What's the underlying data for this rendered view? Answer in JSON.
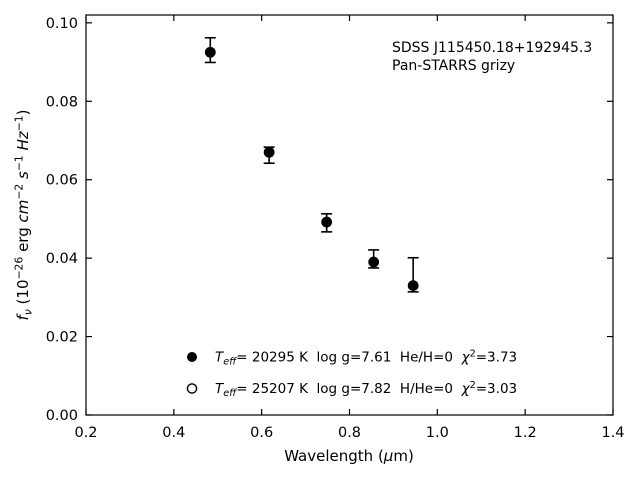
{
  "colors": {
    "foreground": "#000000",
    "background": "#ffffff"
  },
  "chart_data": {
    "type": "scatter",
    "title": "",
    "xlabel": "Wavelength (μm)",
    "ylabel": "f_ν (10^−26 erg cm^−2 s^−1 Hz^−1)",
    "xlabel_segments": [
      {
        "t": "Wavelength ("
      },
      {
        "t": "μ",
        "i": 1
      },
      {
        "t": "m)"
      }
    ],
    "ylabel_segments": [
      {
        "t": "f",
        "i": 1
      },
      {
        "t": "ν",
        "i": 1,
        "sub": 1
      },
      {
        "t": " (10"
      },
      {
        "t": "−26",
        "sup": 1
      },
      {
        "t": " erg "
      },
      {
        "t": "cm",
        "i": 1
      },
      {
        "t": "−2",
        "sup": 1
      },
      {
        "t": " "
      },
      {
        "t": "s",
        "i": 1
      },
      {
        "t": "−1",
        "sup": 1
      },
      {
        "t": " "
      },
      {
        "t": "Hz",
        "i": 1
      },
      {
        "t": "−1",
        "sup": 1
      },
      {
        "t": ")"
      }
    ],
    "xlim": [
      0.2,
      1.4
    ],
    "ylim": [
      0.0,
      0.102
    ],
    "xticks": [
      0.2,
      0.4,
      0.6,
      0.8,
      1.0,
      1.2,
      1.4
    ],
    "xtick_labels": [
      "0.2",
      "0.4",
      "0.6",
      "0.8",
      "1.0",
      "1.2",
      "1.4"
    ],
    "yticks": [
      0.0,
      0.02,
      0.04,
      0.06,
      0.08,
      0.1
    ],
    "ytick_labels": [
      "0.00",
      "0.02",
      "0.04",
      "0.06",
      "0.08",
      "0.10"
    ],
    "grid": false,
    "annotations": [
      "SDSS J115450.18+192945.3",
      "Pan-STARRS grizy"
    ],
    "series": [
      {
        "name": "model-fluxes-filled",
        "marker": "filled-circle",
        "color": "#000000",
        "x": [
          0.483,
          0.617,
          0.748,
          0.855,
          0.945
        ],
        "y": [
          0.0925,
          0.067,
          0.0492,
          0.039,
          0.033
        ]
      }
    ],
    "errorbars": {
      "x": [
        0.483,
        0.617,
        0.748,
        0.855,
        0.945
      ],
      "y_low": [
        0.0899,
        0.0642,
        0.0467,
        0.0375,
        0.0314
      ],
      "y_high": [
        0.0962,
        0.0683,
        0.0513,
        0.0421,
        0.0401
      ]
    },
    "legend": {
      "position": "lower-center-inside",
      "rows": [
        {
          "marker": "filled-circle",
          "segments": [
            {
              "t": "T",
              "i": 1
            },
            {
              "t": "eff",
              "i": 1,
              "sub": 1
            },
            {
              "t": "= 20295 K  log g=7.61  He/H=0  "
            },
            {
              "t": "χ",
              "i": 1
            },
            {
              "t": "2",
              "sup": 1
            },
            {
              "t": "=3.73"
            }
          ]
        },
        {
          "marker": "open-circle",
          "segments": [
            {
              "t": "T",
              "i": 1
            },
            {
              "t": "eff",
              "i": 1,
              "sub": 1
            },
            {
              "t": "= 25207 K  log g=7.82  H/He=0  "
            },
            {
              "t": "χ",
              "i": 1
            },
            {
              "t": "2",
              "sup": 1
            },
            {
              "t": "=3.03"
            }
          ]
        }
      ]
    }
  }
}
